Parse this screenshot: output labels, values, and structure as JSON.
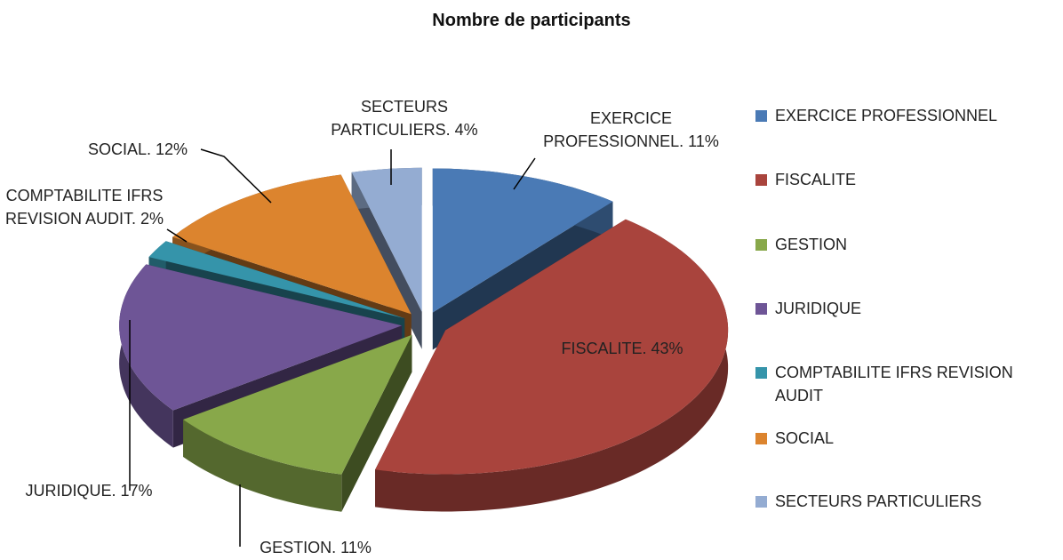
{
  "chart_data": {
    "type": "pie",
    "title": "Nombre de participants",
    "categories": [
      "EXERCICE PROFESSIONNEL",
      "FISCALITE",
      "GESTION",
      "JURIDIQUE",
      "COMPTABILITE IFRS REVISION AUDIT",
      "SOCIAL",
      "SECTEURS PARTICULIERS"
    ],
    "values": [
      11,
      43,
      11,
      17,
      2,
      12,
      4
    ],
    "value_labels": [
      "EXERCICE PROFESSIONNEL. 11%",
      "FISCALITE. 43%",
      "GESTION. 11%",
      "JURIDIQUE. 17%",
      "COMPTABILITE IFRS REVISION AUDIT. 2%",
      "SOCIAL. 12%",
      "SECTEURS PARTICULIERS. 4%"
    ],
    "colors": [
      "#4a7ab5",
      "#a9443d",
      "#88a84a",
      "#6e5596",
      "#3594aa",
      "#dc842e",
      "#94acd2"
    ],
    "legend": "right"
  }
}
